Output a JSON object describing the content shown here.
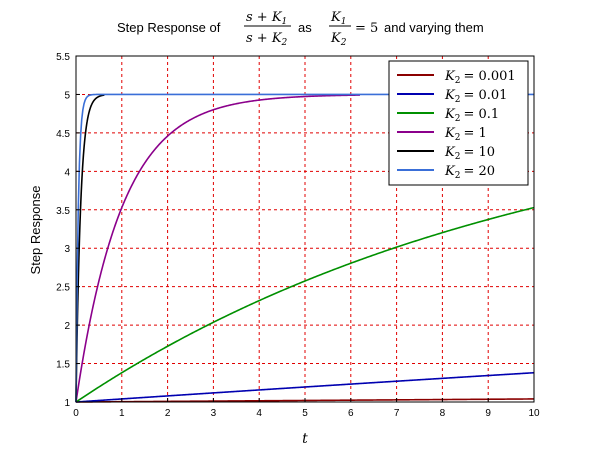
{
  "chart_data": {
    "type": "line",
    "title": {
      "prefix": "Step Response of",
      "frac1_num": "s + K",
      "frac1_num_sub": "1",
      "frac1_den": "s + K",
      "frac1_den_sub": "2",
      "middle": "as",
      "frac2_num": "K",
      "frac2_num_sub": "1",
      "frac2_den": "K",
      "frac2_den_sub": "2",
      "equals": "= 5",
      "suffix": "and varying them"
    },
    "xlabel": "t",
    "ylabel": "Step Response",
    "xlim": [
      0,
      10
    ],
    "ylim": [
      1,
      5.5
    ],
    "x_ticks": [
      "0",
      "1",
      "2",
      "3",
      "4",
      "5",
      "6",
      "7",
      "8",
      "9",
      "10"
    ],
    "y_ticks": [
      "1",
      "1.5",
      "2",
      "2.5",
      "3",
      "3.5",
      "4",
      "4.5",
      "5",
      "5.5"
    ],
    "grid": true,
    "grid_color": "#e00000",
    "legend_position": "top-right",
    "model": "y(t) = 5 - 4*exp(-K2*t)",
    "series": [
      {
        "name": "K2 = 0.001",
        "legend": "K",
        "sub": "2",
        "value": "= 0.001",
        "k2": 0.001,
        "t_end": 10,
        "color": "#8b0000",
        "x": [
          0,
          2,
          4,
          6,
          8,
          10
        ],
        "y": [
          1.0,
          1.008,
          1.016,
          1.024,
          1.032,
          1.04
        ]
      },
      {
        "name": "K2 = 0.01",
        "legend": "K",
        "sub": "2",
        "value": "= 0.01",
        "k2": 0.01,
        "t_end": 10,
        "color": "#0000b0",
        "x": [
          0,
          2,
          4,
          6,
          8,
          10
        ],
        "y": [
          1.0,
          1.079,
          1.157,
          1.233,
          1.308,
          1.381
        ]
      },
      {
        "name": "K2 = 0.1",
        "legend": "K",
        "sub": "2",
        "value": "= 0.1",
        "k2": 0.1,
        "t_end": 10,
        "color": "#009000",
        "x": [
          0,
          2,
          4,
          6,
          8,
          10
        ],
        "y": [
          1.0,
          1.725,
          2.319,
          2.805,
          3.203,
          3.528
        ]
      },
      {
        "name": "K2 = 1",
        "legend": "K",
        "sub": "2",
        "value": "= 1",
        "k2": 1,
        "t_end": 6.2,
        "color": "#8b008b",
        "x": [
          0,
          1,
          2,
          3,
          4,
          6.2
        ],
        "y": [
          1.0,
          3.528,
          4.459,
          4.801,
          4.927,
          4.992
        ]
      },
      {
        "name": "K2 = 10",
        "legend": "K",
        "sub": "2",
        "value": "= 10",
        "k2": 10,
        "t_end": 0.62,
        "color": "#000000",
        "x": [
          0,
          0.1,
          0.2,
          0.3,
          0.62
        ],
        "y": [
          1.0,
          3.528,
          4.459,
          4.801,
          4.992
        ]
      },
      {
        "name": "K2 = 20",
        "legend": "K",
        "sub": "2",
        "value": "= 20",
        "k2": 20,
        "t_end": 10,
        "color": "#3a6fd8",
        "x": [
          0,
          0.05,
          0.1,
          0.2,
          0.4,
          10
        ],
        "y": [
          1.0,
          3.528,
          4.459,
          4.927,
          5.0,
          5.0
        ]
      }
    ]
  }
}
